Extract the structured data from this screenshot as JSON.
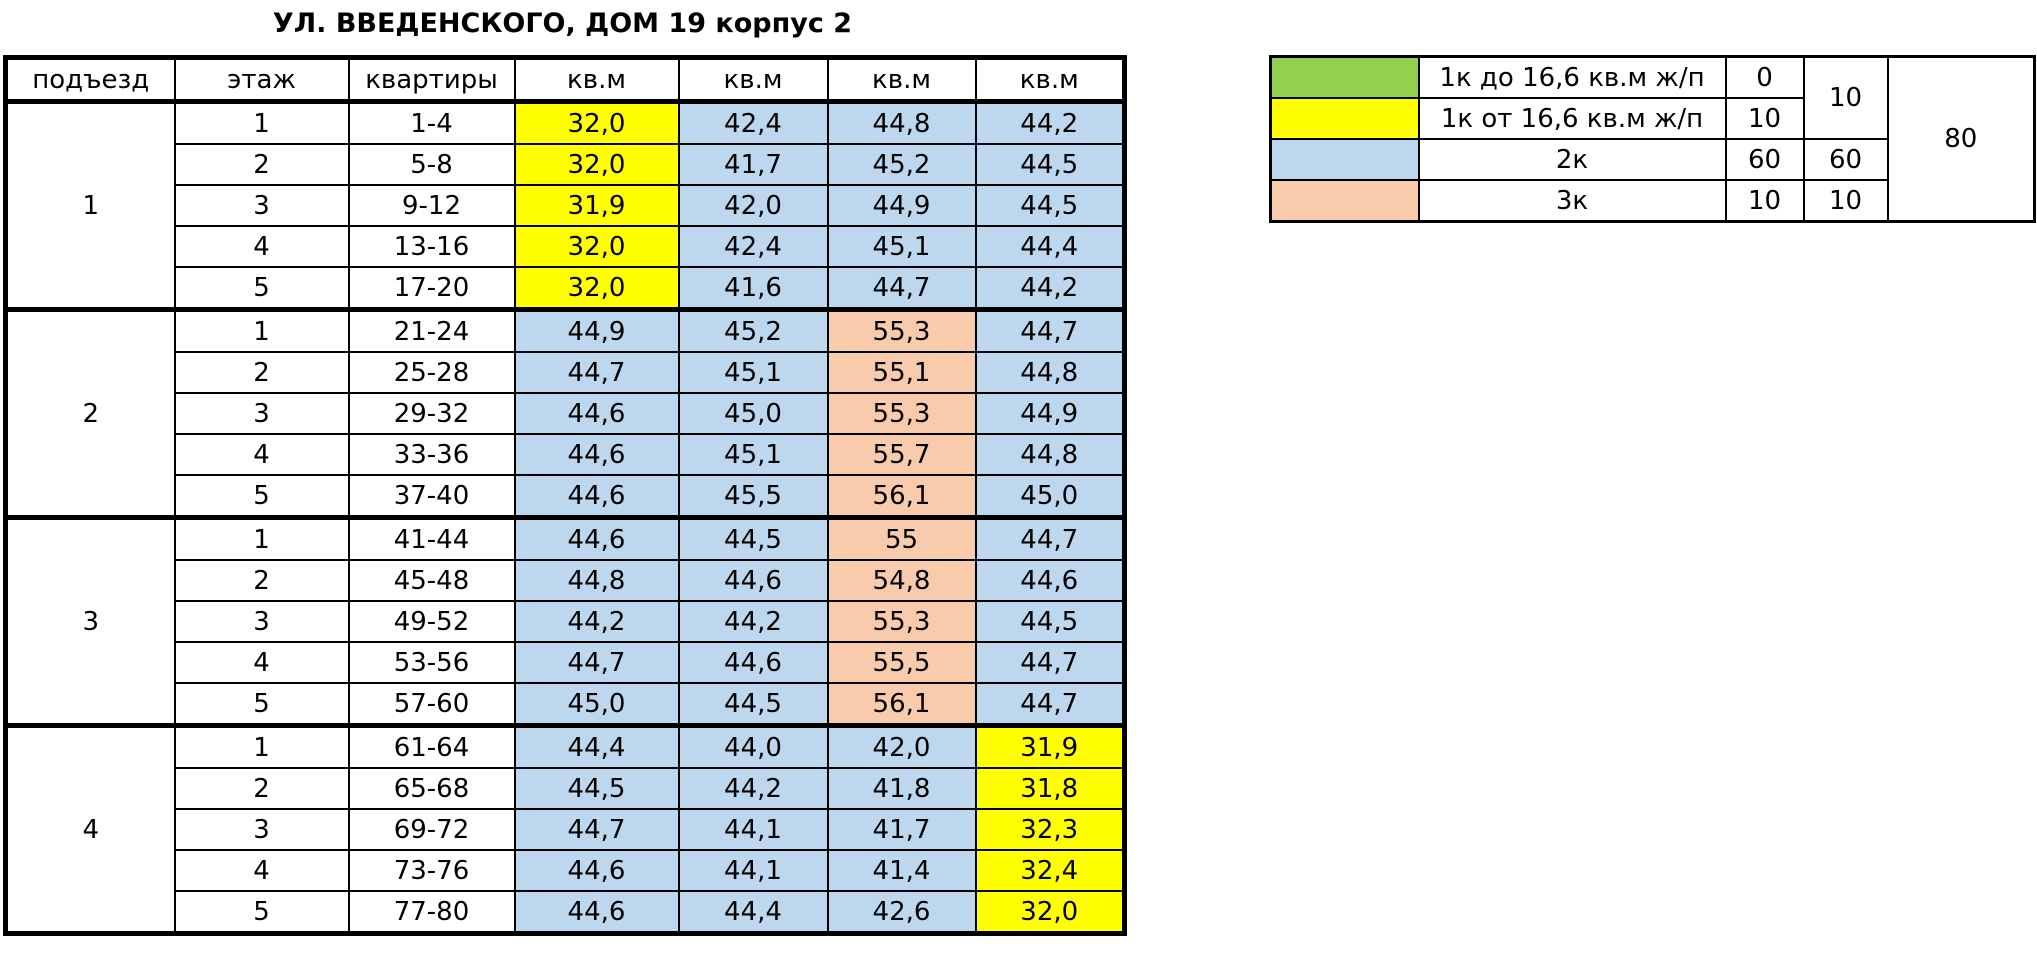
{
  "title": "УЛ. ВВЕДЕНСКОГО, ДОМ 19 корпус 2",
  "table": {
    "header": [
      "подъезд",
      "этаж",
      "квартиры",
      "кв.м",
      "кв.м",
      "кв.м",
      "кв.м"
    ],
    "sections": [
      {
        "entrance": "1",
        "rows": [
          [
            "1",
            "1-4",
            "32,0",
            "42,4",
            "44,8",
            "44,2"
          ],
          [
            "2",
            "5-8",
            "32,0",
            "41,7",
            "45,2",
            "44,5"
          ],
          [
            "3",
            "9-12",
            "31,9",
            "42,0",
            "44,9",
            "44,5"
          ],
          [
            "4",
            "13-16",
            "32,0",
            "42,4",
            "45,1",
            "44,4"
          ],
          [
            "5",
            "17-20",
            "32,0",
            "41,6",
            "44,7",
            "44,2"
          ]
        ]
      },
      {
        "entrance": "2",
        "rows": [
          [
            "1",
            "21-24",
            "44,9",
            "45,2",
            "55,3",
            "44,7"
          ],
          [
            "2",
            "25-28",
            "44,7",
            "45,1",
            "55,1",
            "44,8"
          ],
          [
            "3",
            "29-32",
            "44,6",
            "45,0",
            "55,3",
            "44,9"
          ],
          [
            "4",
            "33-36",
            "44,6",
            "45,1",
            "55,7",
            "44,8"
          ],
          [
            "5",
            "37-40",
            "44,6",
            "45,5",
            "56,1",
            "45,0"
          ]
        ]
      },
      {
        "entrance": "3",
        "rows": [
          [
            "1",
            "41-44",
            "44,6",
            "44,5",
            "55",
            "44,7"
          ],
          [
            "2",
            "45-48",
            "44,8",
            "44,6",
            "54,8",
            "44,6"
          ],
          [
            "3",
            "49-52",
            "44,2",
            "44,2",
            "55,3",
            "44,5"
          ],
          [
            "4",
            "53-56",
            "44,7",
            "44,6",
            "55,5",
            "44,7"
          ],
          [
            "5",
            "57-60",
            "45,0",
            "44,5",
            "56,1",
            "44,7"
          ]
        ]
      },
      {
        "entrance": "4",
        "rows": [
          [
            "1",
            "61-64",
            "44,4",
            "44,0",
            "42,0",
            "31,9"
          ],
          [
            "2",
            "65-68",
            "44,5",
            "44,2",
            "41,8",
            "31,8"
          ],
          [
            "3",
            "69-72",
            "44,7",
            "44,1",
            "41,7",
            "32,3"
          ],
          [
            "4",
            "73-76",
            "44,6",
            "44,1",
            "41,4",
            "32,4"
          ],
          [
            "5",
            "77-80",
            "44,6",
            "44,4",
            "42,6",
            "32,0"
          ]
        ]
      }
    ]
  },
  "legend": {
    "rows": [
      {
        "color": "#92d050",
        "label": "1к до 16,6 кв.м ж/п",
        "count": "0"
      },
      {
        "color": "#ffff00",
        "label": "1к от 16,6 кв.м ж/п",
        "count": "10"
      },
      {
        "color": "#bdd7ee",
        "label": "2к",
        "count": "60"
      },
      {
        "color": "#f8cbad",
        "label": "3к",
        "count": "10"
      }
    ],
    "group_totals": [
      "10",
      "60",
      "10"
    ],
    "total": "80"
  }
}
